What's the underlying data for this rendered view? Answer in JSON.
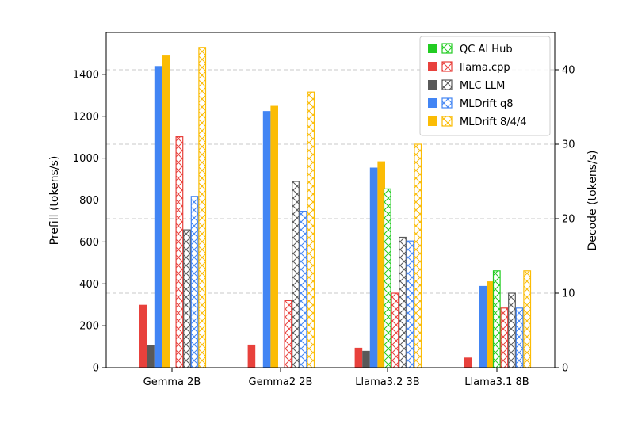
{
  "chart_data": {
    "type": "bar",
    "categories": [
      "Gemma 2B",
      "Gemma2 2B",
      "Llama3.2 3B",
      "Llama3.1 8B"
    ],
    "ylabel_left": "Prefill (tokens/s)",
    "ylabel_right": "Decode (tokens/s)",
    "ylim_left": [
      0,
      1600
    ],
    "ylim_right": [
      0,
      45
    ],
    "yticks_left": [
      0,
      200,
      400,
      600,
      800,
      1000,
      1200,
      1400
    ],
    "yticks_right": [
      0,
      10,
      20,
      30,
      40
    ],
    "grid": "horizontal dashed at right-axis ticks",
    "legend_position": "top-right",
    "prefill_series": [
      {
        "name": "QC AI Hub",
        "color": "#22cc22",
        "values": [
          null,
          null,
          null,
          null
        ]
      },
      {
        "name": "llama.cpp",
        "color": "#e8413c",
        "values": [
          300,
          110,
          95,
          48
        ]
      },
      {
        "name": "MLC LLM",
        "color": "#595959",
        "values": [
          108,
          null,
          80,
          null
        ]
      },
      {
        "name": "MLDrift q8",
        "color": "#4285f4",
        "values": [
          1440,
          1225,
          955,
          390
        ]
      },
      {
        "name": "MLDrift 8/4/4",
        "color": "#fbbc05",
        "values": [
          1490,
          1250,
          985,
          412
        ]
      }
    ],
    "decode_series": [
      {
        "name": "QC AI Hub",
        "color": "#22cc22",
        "values": [
          null,
          null,
          24,
          13
        ]
      },
      {
        "name": "llama.cpp",
        "color": "#e8413c",
        "values": [
          31,
          9,
          10,
          8
        ]
      },
      {
        "name": "MLC LLM",
        "color": "#595959",
        "values": [
          18.5,
          25,
          17.5,
          10
        ]
      },
      {
        "name": "MLDrift q8",
        "color": "#4285f4",
        "values": [
          23,
          21,
          17,
          8
        ]
      },
      {
        "name": "MLDrift 8/4/4",
        "color": "#fbbc05",
        "values": [
          43,
          37,
          30,
          13
        ]
      }
    ]
  }
}
